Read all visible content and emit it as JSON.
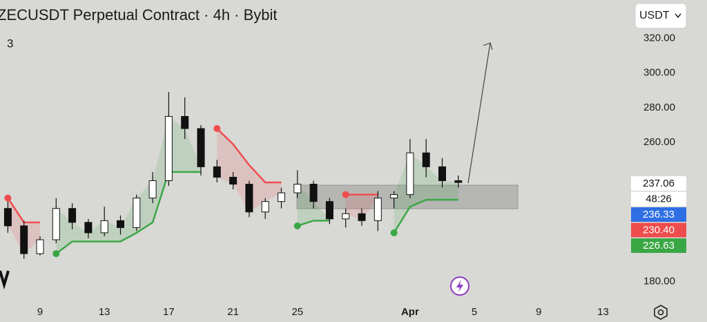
{
  "chart_data": {
    "type": "candlestick",
    "title": "ZECUSDT Perpetual Contract · 4h · Bybit",
    "indicator_label": "3",
    "currency": "USDT",
    "categories": [
      null,
      null,
      "9",
      null,
      null,
      null,
      "13",
      null,
      null,
      null,
      "17",
      null,
      null,
      null,
      "21",
      null,
      null,
      null,
      "25",
      null,
      null,
      null,
      null,
      null,
      null,
      "Apr",
      null,
      null,
      null,
      "5",
      null,
      null,
      null,
      "9",
      null,
      null,
      null,
      "13",
      null
    ],
    "open": [
      222,
      212,
      196,
      204,
      222,
      214,
      208,
      215,
      211,
      228,
      238,
      275,
      268,
      246,
      240,
      236,
      220,
      226,
      231,
      236,
      226,
      216,
      219,
      215,
      228,
      230,
      254,
      246,
      238,
      null,
      null,
      null,
      null,
      null,
      null,
      null,
      null,
      null,
      null
    ],
    "high": [
      226,
      215,
      206,
      228,
      225,
      216,
      223,
      218,
      230,
      243,
      289,
      286,
      270,
      250,
      243,
      238,
      228,
      234,
      244,
      238,
      228,
      222,
      222,
      232,
      232,
      262,
      262,
      251,
      241,
      null,
      null,
      null,
      null,
      null,
      null,
      null,
      null,
      null,
      null
    ],
    "low": [
      208,
      193,
      195,
      202,
      210,
      205,
      206,
      207,
      209,
      225,
      235,
      262,
      241,
      237,
      233,
      217,
      216,
      222,
      228,
      222,
      213,
      211,
      212,
      209,
      222,
      228,
      240,
      234,
      234,
      null,
      null,
      null,
      null,
      null,
      null,
      null,
      null,
      null,
      null
    ],
    "close": [
      212,
      196,
      204,
      222,
      214,
      208,
      215,
      211,
      228,
      238,
      275,
      268,
      246,
      240,
      236,
      220,
      226,
      231,
      236,
      226,
      216,
      219,
      215,
      228,
      230,
      254,
      246,
      238,
      237,
      null,
      null,
      null,
      null,
      null,
      null,
      null,
      null,
      null,
      null
    ],
    "trend_down": [
      228,
      214,
      214,
      null,
      null,
      null,
      null,
      null,
      null,
      null,
      null,
      null,
      null,
      268,
      259,
      247,
      237,
      237,
      null,
      null,
      null,
      230,
      230,
      230,
      null,
      null,
      null,
      null,
      null,
      null,
      null,
      null,
      null,
      null,
      null,
      null,
      null,
      null,
      null
    ],
    "trend_up": [
      null,
      null,
      null,
      196,
      203,
      203,
      203,
      203,
      208,
      214,
      243,
      243,
      243,
      null,
      null,
      null,
      null,
      null,
      212,
      215,
      215,
      null,
      null,
      null,
      208,
      223,
      227,
      227,
      227,
      null,
      null,
      null,
      null,
      null,
      null,
      null,
      null,
      null,
      null
    ],
    "up_color": "#ffffff",
    "down_color": "#111111",
    "trend_up_color": "#3aa745",
    "trend_down_color": "#ef4d4d",
    "ylim": [
      167,
      342
    ],
    "yticks": [
      {
        "value": 180,
        "label": "180.00"
      },
      {
        "value": 260,
        "label": "260.00"
      },
      {
        "value": 280,
        "label": "280.00"
      },
      {
        "value": 300,
        "label": "300.00"
      },
      {
        "value": 320,
        "label": "320.00"
      }
    ],
    "price_labels": [
      {
        "text": "237.06",
        "color": "#ffffff",
        "text_color": "#111111"
      },
      {
        "text": "48:26",
        "color": "#ffffff",
        "text_color": "#111111"
      },
      {
        "text": "236.33",
        "color": "#2f6fe4",
        "text_color": "#ffffff"
      },
      {
        "text": "230.40",
        "color": "#ef4d4d",
        "text_color": "#ffffff"
      },
      {
        "text": "226.63",
        "color": "#3aa745",
        "text_color": "#ffffff"
      }
    ]
  }
}
